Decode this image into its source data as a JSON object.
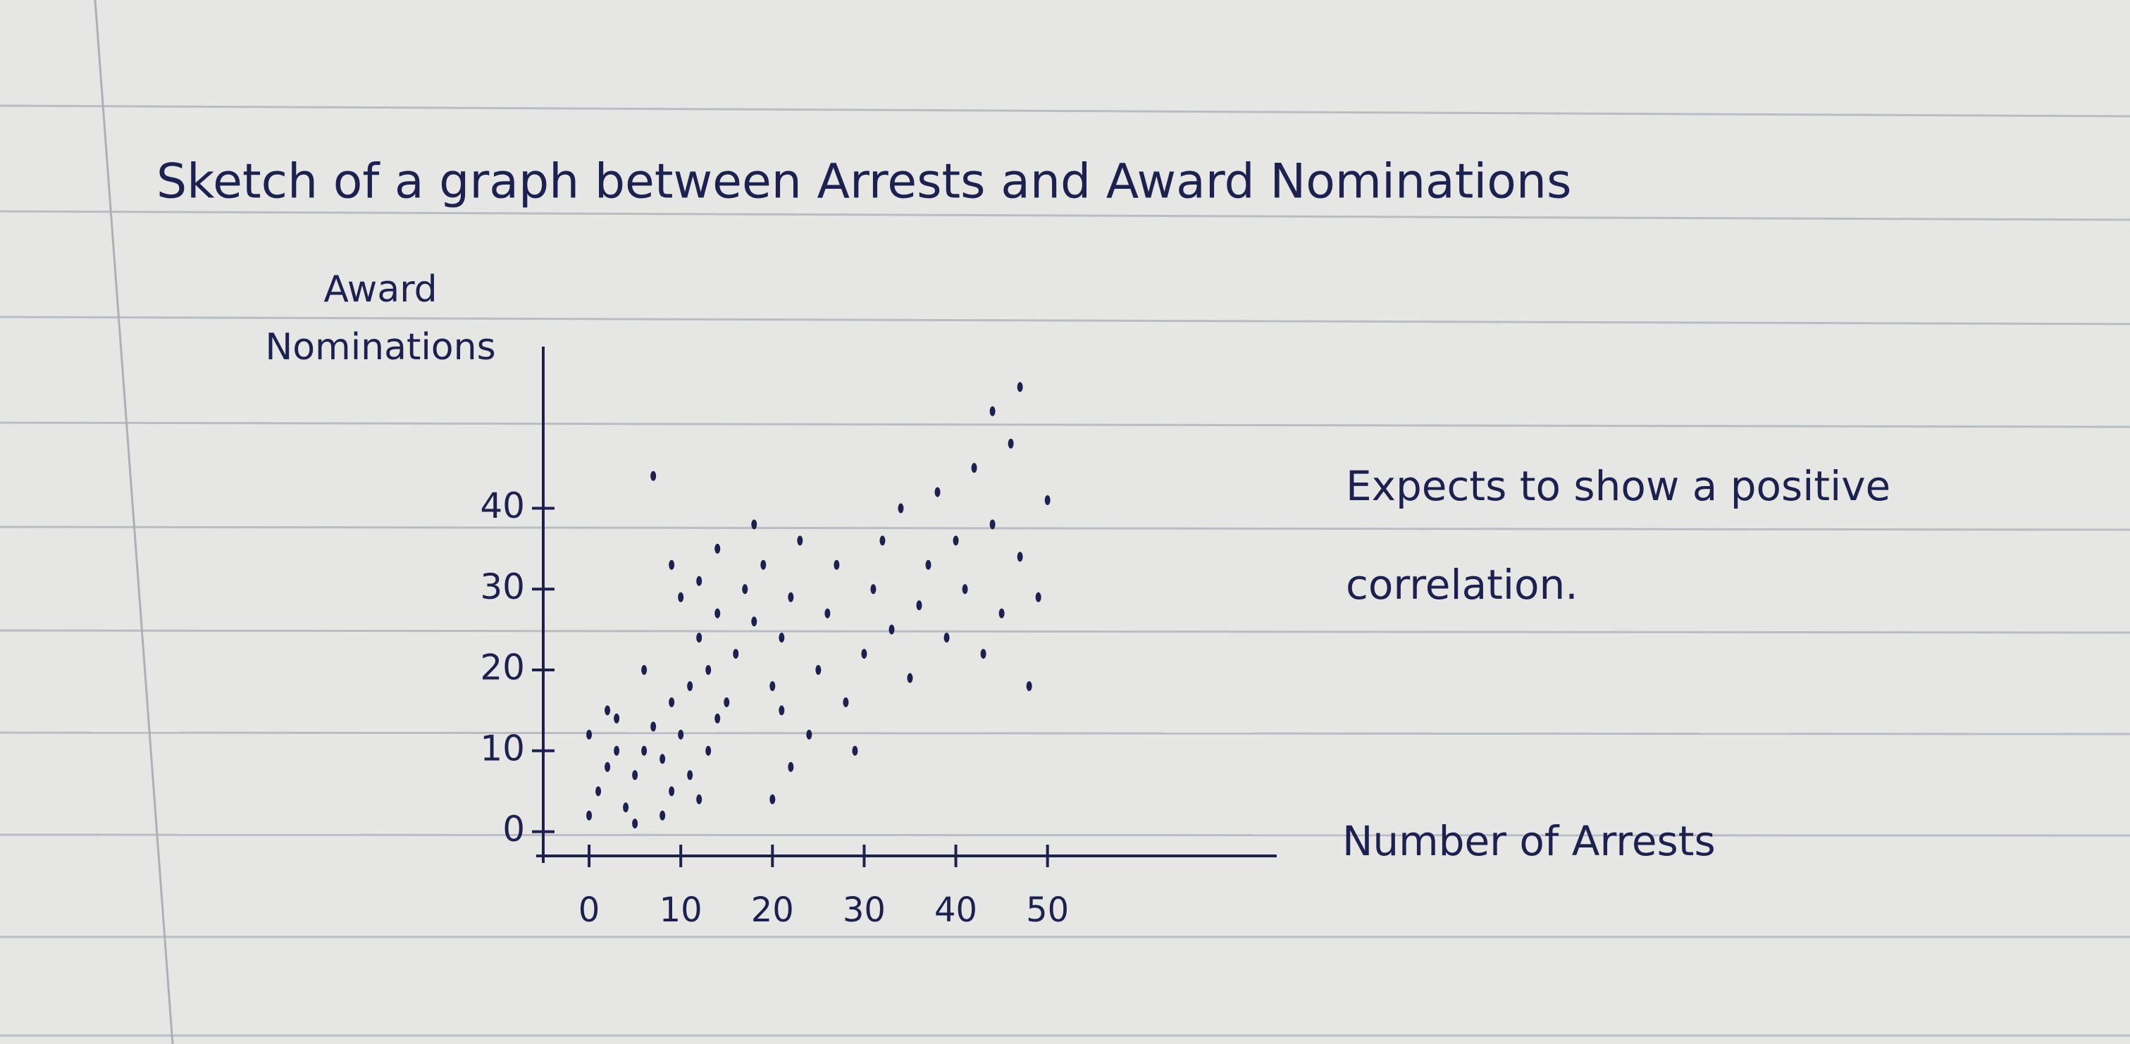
{
  "chart_data": {
    "type": "scatter",
    "title": "Sketch of a graph between Arrests and Award Nominations",
    "y_label": "Award Nominations",
    "x_label": "Number of Arrests",
    "annotation": "Expects to show a positive correlation.",
    "x": [
      0,
      1,
      2,
      0,
      3,
      4,
      5,
      6,
      7,
      2,
      5,
      8,
      9,
      8,
      10,
      11,
      12,
      13,
      14,
      9,
      11,
      13,
      12,
      14,
      10,
      9,
      12,
      14,
      16,
      17,
      18,
      19,
      20,
      21,
      22,
      23,
      18,
      21,
      22,
      20,
      24,
      25,
      26,
      27,
      28,
      29,
      30,
      31,
      32,
      33,
      34,
      35,
      36,
      37,
      38,
      39,
      40,
      41,
      42,
      43,
      44,
      45,
      46,
      47,
      48,
      49,
      50,
      44,
      47,
      7,
      3,
      15,
      6
    ],
    "values": [
      2,
      5,
      8,
      12,
      14,
      3,
      7,
      10,
      13,
      15,
      1,
      2,
      5,
      9,
      12,
      7,
      4,
      10,
      14,
      16,
      18,
      20,
      24,
      27,
      29,
      33,
      31,
      35,
      22,
      30,
      26,
      33,
      18,
      24,
      29,
      36,
      38,
      15,
      8,
      4,
      12,
      20,
      27,
      33,
      16,
      10,
      22,
      30,
      36,
      25,
      40,
      19,
      28,
      33,
      42,
      24,
      36,
      30,
      45,
      22,
      38,
      27,
      48,
      34,
      18,
      29,
      41,
      52,
      55,
      44,
      10,
      16,
      20
    ],
    "color": "#1d2150",
    "xlim": [
      -5,
      75
    ],
    "xticks": [
      0,
      10,
      20,
      30,
      40,
      50
    ],
    "ylim": [
      -3,
      60
    ],
    "yticks": [
      0,
      10,
      20,
      30,
      40
    ],
    "grid": false
  }
}
